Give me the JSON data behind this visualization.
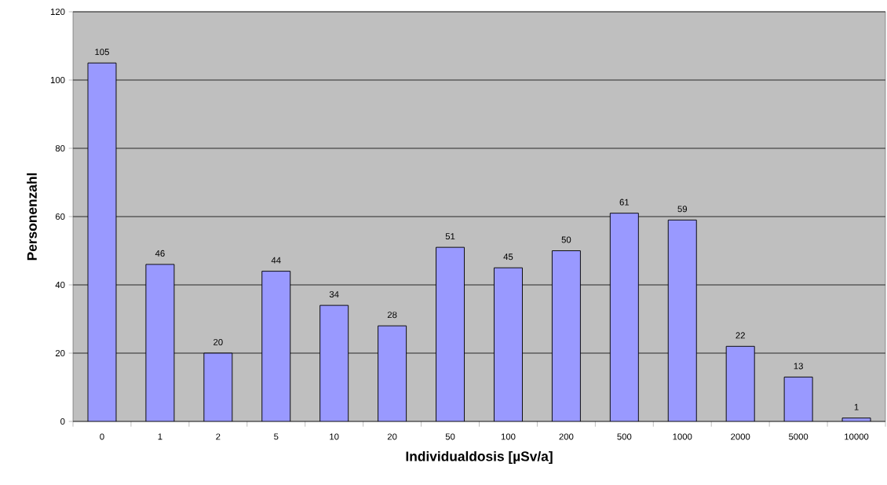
{
  "chart_data": {
    "type": "bar",
    "xlabel": "Individualdosis [µSv/a]",
    "ylabel": "Personenzahl",
    "categories": [
      "0",
      "1",
      "2",
      "5",
      "10",
      "20",
      "50",
      "100",
      "200",
      "500",
      "1000",
      "2000",
      "5000",
      "10000"
    ],
    "values": [
      105,
      46,
      20,
      44,
      34,
      28,
      51,
      45,
      50,
      61,
      59,
      22,
      13,
      1
    ],
    "color": "#9999ff",
    "ylim": [
      0,
      120
    ],
    "yticks": [
      0,
      20,
      40,
      60,
      80,
      100,
      120
    ],
    "grid": "y",
    "data_labels": true
  }
}
